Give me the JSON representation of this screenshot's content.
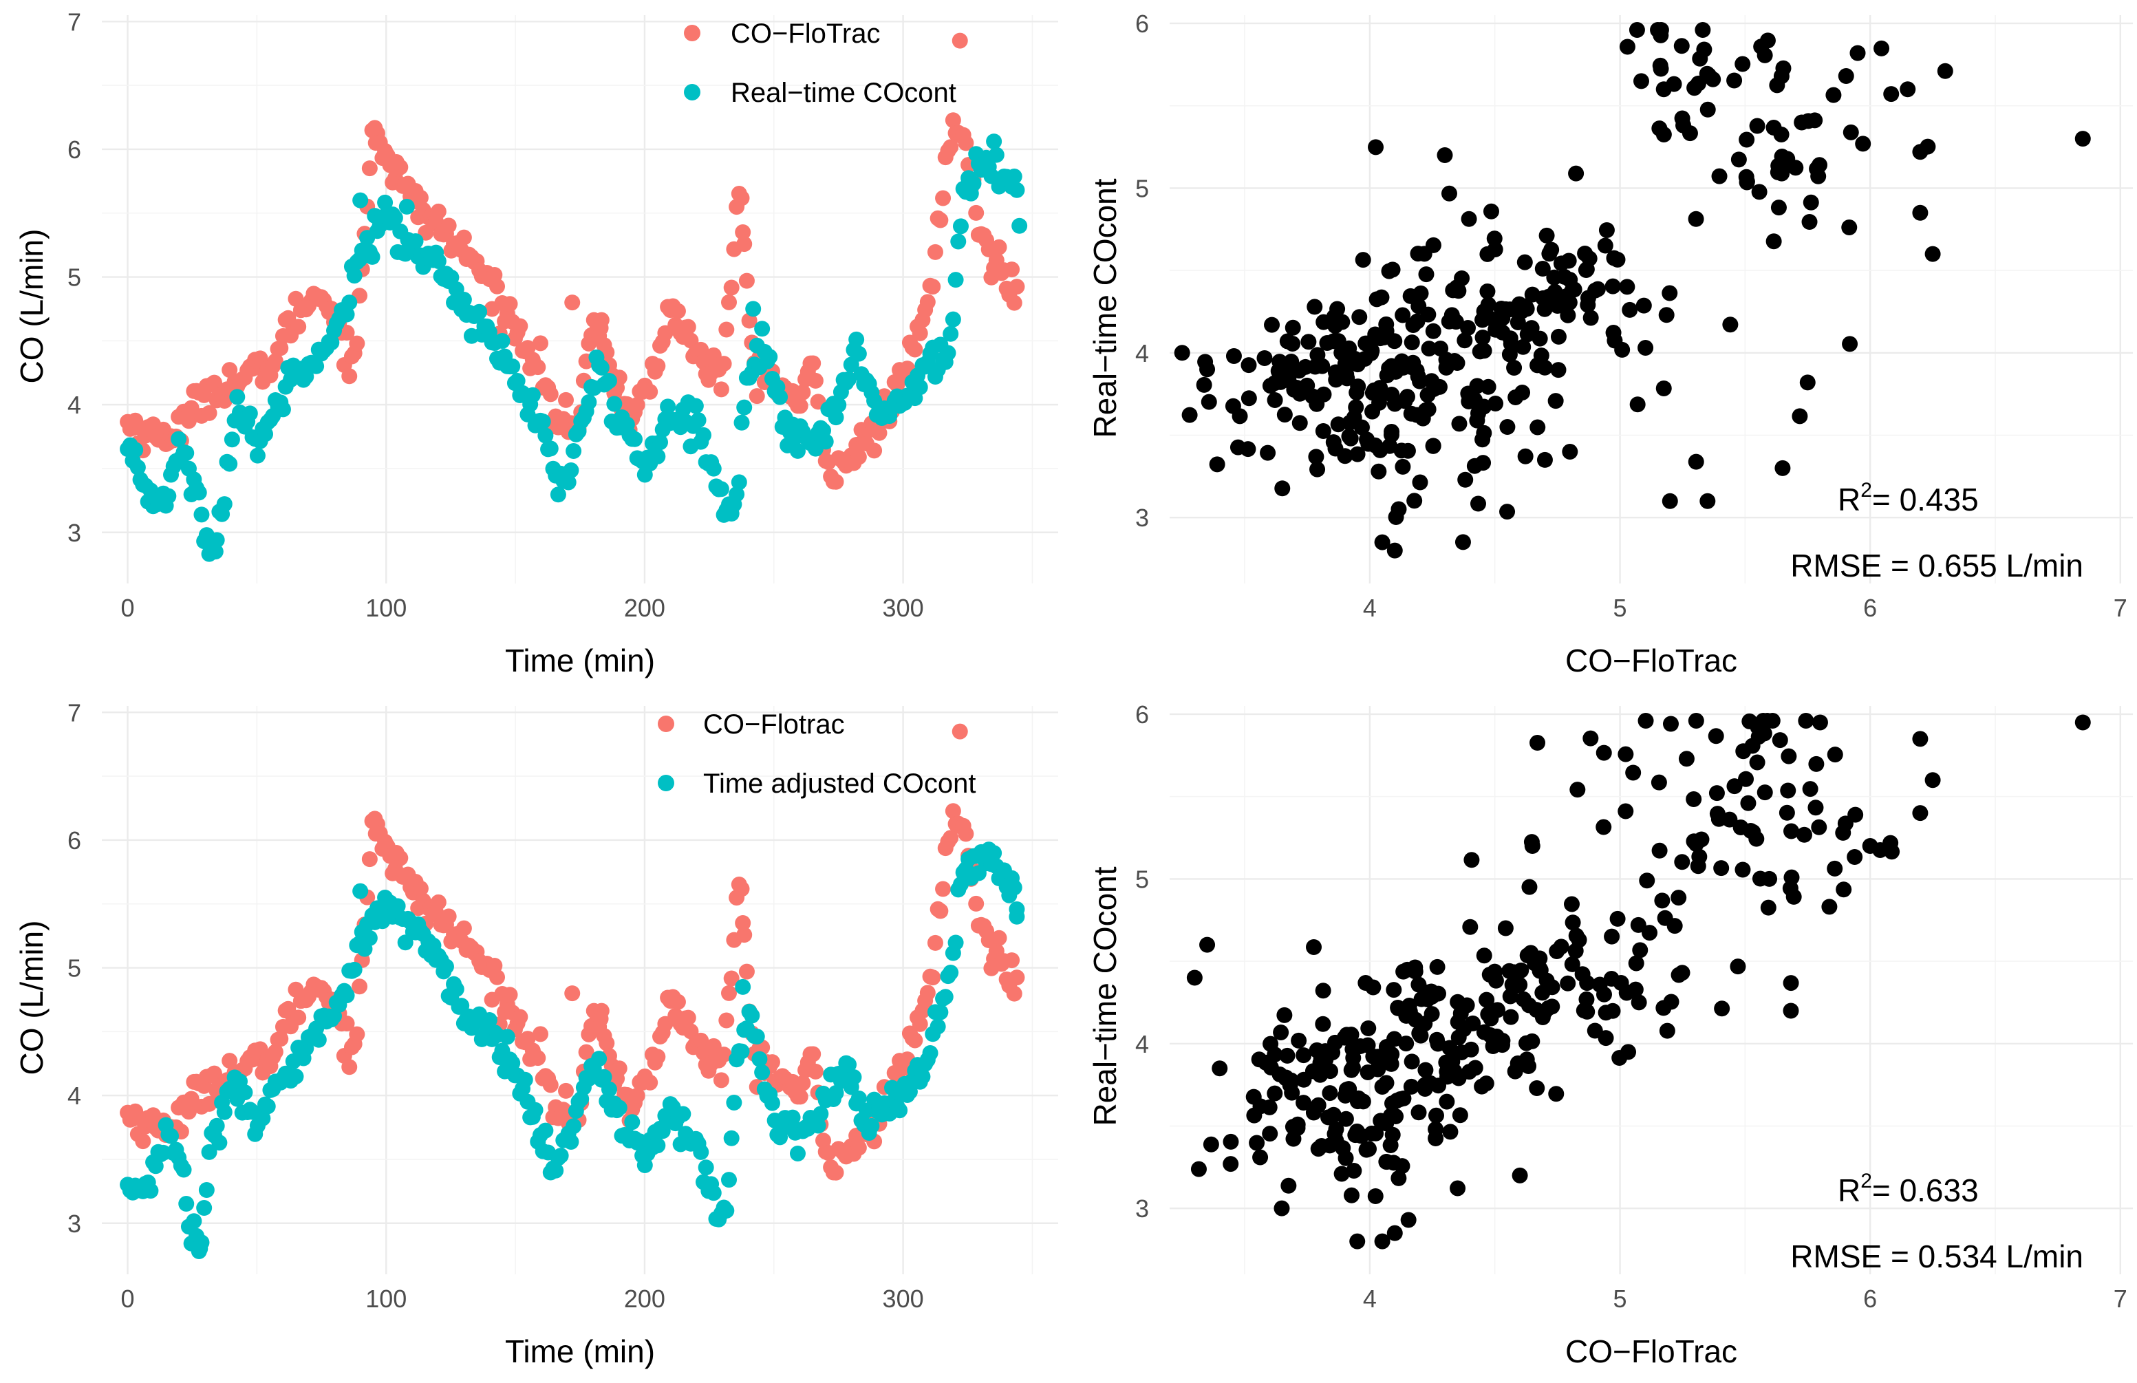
{
  "colors": {
    "flotrac": "#F8766D",
    "cocont": "#00BFC4",
    "black": "#000000"
  },
  "chart_data": [
    {
      "type": "scatter",
      "panel": "top-left",
      "title": "",
      "xlabel": "Time (min)",
      "ylabel": "CO (L/min)",
      "xlim": [
        -10,
        360
      ],
      "ylim": [
        2.6,
        7.05
      ],
      "xticks": [
        0,
        100,
        200,
        300
      ],
      "yticks": [
        3,
        4,
        5,
        6,
        7
      ],
      "legend": {
        "position": "top-right",
        "entries": [
          "CO−FloTrac",
          "Real−time COcont"
        ]
      },
      "series": [
        {
          "name": "CO−FloTrac",
          "color": "#F8766D",
          "knots": [
            [
              0,
              3.85
            ],
            [
              10,
              3.75
            ],
            [
              20,
              3.8
            ],
            [
              30,
              4.1
            ],
            [
              45,
              4.2
            ],
            [
              55,
              4.3
            ],
            [
              65,
              4.7
            ],
            [
              75,
              4.9
            ],
            [
              82,
              4.6
            ],
            [
              88,
              4.3
            ],
            [
              95,
              6.25
            ],
            [
              100,
              5.95
            ],
            [
              110,
              5.6
            ],
            [
              120,
              5.4
            ],
            [
              135,
              5.1
            ],
            [
              150,
              4.6
            ],
            [
              160,
              4.3
            ],
            [
              165,
              3.9
            ],
            [
              175,
              3.8
            ],
            [
              180,
              4.75
            ],
            [
              188,
              4.2
            ],
            [
              195,
              3.9
            ],
            [
              205,
              4.3
            ],
            [
              210,
              4.8
            ],
            [
              220,
              4.4
            ],
            [
              230,
              4.2
            ],
            [
              237,
              5.7
            ],
            [
              242,
              4.3
            ],
            [
              250,
              4.2
            ],
            [
              260,
              4.0
            ],
            [
              265,
              4.3
            ],
            [
              270,
              3.5
            ],
            [
              280,
              3.6
            ],
            [
              290,
              3.8
            ],
            [
              300,
              4.2
            ],
            [
              310,
              4.8
            ],
            [
              318,
              6.1
            ],
            [
              323,
              6.15
            ],
            [
              330,
              5.3
            ],
            [
              340,
              5.0
            ],
            [
              345,
              4.9
            ]
          ],
          "extra": [
            [
              322,
              6.85
            ],
            [
              104,
              5.9
            ],
            [
              96,
              6.05
            ],
            [
              238,
              5.35
            ],
            [
              183,
              4.6
            ],
            [
              172,
              4.8
            ],
            [
              212,
              4.6
            ]
          ],
          "n": 350
        },
        {
          "name": "Real−time COcont",
          "color": "#00BFC4",
          "knots": [
            [
              0,
              3.6
            ],
            [
              5,
              3.4
            ],
            [
              10,
              3.25
            ],
            [
              15,
              3.3
            ],
            [
              20,
              3.7
            ],
            [
              25,
              3.4
            ],
            [
              30,
              3.0
            ],
            [
              33,
              2.8
            ],
            [
              38,
              3.4
            ],
            [
              42,
              4.0
            ],
            [
              50,
              3.7
            ],
            [
              60,
              4.1
            ],
            [
              70,
              4.4
            ],
            [
              80,
              4.5
            ],
            [
              88,
              5.1
            ],
            [
              95,
              5.3
            ],
            [
              100,
              5.5
            ],
            [
              110,
              5.2
            ],
            [
              120,
              5.1
            ],
            [
              130,
              4.8
            ],
            [
              140,
              4.5
            ],
            [
              150,
              4.2
            ],
            [
              160,
              3.8
            ],
            [
              168,
              3.3
            ],
            [
              175,
              3.8
            ],
            [
              182,
              4.3
            ],
            [
              190,
              3.9
            ],
            [
              200,
              3.5
            ],
            [
              210,
              4.0
            ],
            [
              220,
              3.9
            ],
            [
              230,
              3.2
            ],
            [
              235,
              3.15
            ],
            [
              240,
              4.3
            ],
            [
              245,
              4.5
            ],
            [
              255,
              3.8
            ],
            [
              265,
              3.7
            ],
            [
              275,
              4.0
            ],
            [
              282,
              4.5
            ],
            [
              290,
              3.9
            ],
            [
              300,
              4.0
            ],
            [
              310,
              4.4
            ],
            [
              318,
              4.4
            ],
            [
              323,
              5.6
            ],
            [
              330,
              5.9
            ],
            [
              340,
              5.8
            ],
            [
              345,
              5.7
            ]
          ],
          "extra": [
            [
              242,
              4.75
            ],
            [
              90,
              5.6
            ],
            [
              108,
              5.55
            ],
            [
              34,
              2.85
            ],
            [
              345,
              5.4
            ]
          ],
          "n": 350
        }
      ]
    },
    {
      "type": "scatter",
      "panel": "top-right",
      "xlabel": "CO−FloTrac",
      "ylabel": "Real−time COcont",
      "xlim": [
        3.2,
        7.05
      ],
      "ylim": [
        2.6,
        6.05
      ],
      "xticks": [
        4,
        5,
        6,
        7
      ],
      "yticks": [
        3,
        4,
        5,
        6
      ],
      "annotations": {
        "r2_label": "R",
        "r2_sup": "2",
        "r2_value": "= 0.435",
        "rmse": "RMSE = 0.655 L/min"
      },
      "r_squared": 0.435,
      "rmse_l_per_min": 0.655,
      "clusters": [
        {
          "cx": 3.9,
          "cy": 3.8,
          "sx": 0.25,
          "sy": 0.3,
          "n": 120
        },
        {
          "cx": 4.35,
          "cy": 3.9,
          "sx": 0.25,
          "sy": 0.35,
          "n": 90
        },
        {
          "cx": 4.8,
          "cy": 4.35,
          "sx": 0.18,
          "sy": 0.18,
          "n": 50
        },
        {
          "cx": 5.35,
          "cy": 5.7,
          "sx": 0.3,
          "sy": 0.2,
          "n": 30
        },
        {
          "cx": 5.6,
          "cy": 5.25,
          "sx": 0.25,
          "sy": 0.25,
          "n": 40
        },
        {
          "cx": 4.9,
          "cy": 4.5,
          "sx": 0.5,
          "sy": 0.45,
          "n": 30
        }
      ],
      "extra": [
        [
          6.85,
          5.3
        ],
        [
          5.2,
          3.1
        ],
        [
          5.35,
          3.1
        ],
        [
          5.65,
          3.3
        ],
        [
          5.75,
          3.82
        ],
        [
          4.05,
          2.85
        ],
        [
          4.1,
          2.8
        ],
        [
          4.3,
          5.2
        ],
        [
          6.25,
          4.6
        ],
        [
          6.2,
          4.85
        ],
        [
          6.2,
          5.22
        ],
        [
          6.15,
          5.6
        ],
        [
          5.95,
          5.82
        ],
        [
          4.55,
          3.55
        ],
        [
          4.8,
          3.4
        ],
        [
          4.7,
          3.35
        ],
        [
          3.25,
          4.0
        ],
        [
          3.35,
          3.9
        ]
      ]
    },
    {
      "type": "scatter",
      "panel": "bottom-left",
      "xlabel": "Time (min)",
      "ylabel": "CO (L/min)",
      "xlim": [
        -10,
        360
      ],
      "ylim": [
        2.6,
        7.05
      ],
      "xticks": [
        0,
        100,
        200,
        300
      ],
      "yticks": [
        3,
        4,
        5,
        6,
        7
      ],
      "legend": {
        "position": "top-right",
        "entries": [
          "CO−Flotrac",
          "Time adjusted COcont"
        ]
      },
      "series": [
        {
          "name": "CO−Flotrac",
          "color": "#F8766D",
          "same_as_top": true,
          "n": 350
        },
        {
          "name": "Time adjusted COcont",
          "color": "#00BFC4",
          "knots": [
            [
              0,
              3.25
            ],
            [
              8,
              3.3
            ],
            [
              15,
              3.7
            ],
            [
              20,
              3.5
            ],
            [
              25,
              2.9
            ],
            [
              28,
              2.8
            ],
            [
              32,
              3.6
            ],
            [
              40,
              4.1
            ],
            [
              50,
              3.8
            ],
            [
              60,
              4.1
            ],
            [
              70,
              4.4
            ],
            [
              80,
              4.6
            ],
            [
              88,
              5.1
            ],
            [
              95,
              5.4
            ],
            [
              100,
              5.5
            ],
            [
              110,
              5.3
            ],
            [
              120,
              5.1
            ],
            [
              130,
              4.6
            ],
            [
              140,
              4.5
            ],
            [
              150,
              4.2
            ],
            [
              160,
              3.7
            ],
            [
              165,
              3.3
            ],
            [
              172,
              3.8
            ],
            [
              180,
              4.3
            ],
            [
              190,
              3.8
            ],
            [
              200,
              3.5
            ],
            [
              210,
              3.9
            ],
            [
              220,
              3.6
            ],
            [
              228,
              3.15
            ],
            [
              232,
              3.1
            ],
            [
              235,
              4.1
            ],
            [
              240,
              4.7
            ],
            [
              250,
              3.8
            ],
            [
              260,
              3.7
            ],
            [
              270,
              3.9
            ],
            [
              278,
              4.3
            ],
            [
              285,
              3.8
            ],
            [
              300,
              4.0
            ],
            [
              310,
              4.3
            ],
            [
              318,
              4.9
            ],
            [
              323,
              5.7
            ],
            [
              330,
              5.9
            ],
            [
              340,
              5.7
            ],
            [
              345,
              5.5
            ]
          ],
          "extra": [
            [
              238,
              4.85
            ],
            [
              90,
              5.6
            ],
            [
              28,
              2.8
            ],
            [
              344,
              5.4
            ]
          ],
          "n": 350
        }
      ]
    },
    {
      "type": "scatter",
      "panel": "bottom-right",
      "xlabel": "CO−FloTrac",
      "ylabel": "Real−time COcont",
      "xlim": [
        3.2,
        7.05
      ],
      "ylim": [
        2.6,
        6.05
      ],
      "xticks": [
        4,
        5,
        6,
        7
      ],
      "yticks": [
        3,
        4,
        5,
        6
      ],
      "annotations": {
        "r2_label": "R",
        "r2_sup": "2",
        "r2_value": "= 0.633",
        "rmse": "RMSE = 0.534 L/min"
      },
      "r_squared": 0.633,
      "rmse_l_per_min": 0.534,
      "clusters": [
        {
          "cx": 3.85,
          "cy": 3.6,
          "sx": 0.2,
          "sy": 0.3,
          "n": 110
        },
        {
          "cx": 4.3,
          "cy": 4.0,
          "sx": 0.25,
          "sy": 0.3,
          "n": 100
        },
        {
          "cx": 4.8,
          "cy": 4.4,
          "sx": 0.2,
          "sy": 0.2,
          "n": 50
        },
        {
          "cx": 5.35,
          "cy": 5.75,
          "sx": 0.3,
          "sy": 0.2,
          "n": 30
        },
        {
          "cx": 5.7,
          "cy": 5.3,
          "sx": 0.25,
          "sy": 0.25,
          "n": 40
        },
        {
          "cx": 5.0,
          "cy": 4.6,
          "sx": 0.35,
          "sy": 0.35,
          "n": 30
        }
      ],
      "extra": [
        [
          6.85,
          5.95
        ],
        [
          3.3,
          4.4
        ],
        [
          3.35,
          4.6
        ],
        [
          3.4,
          3.85
        ],
        [
          4.05,
          2.8
        ],
        [
          4.1,
          2.85
        ],
        [
          3.95,
          2.8
        ],
        [
          4.6,
          3.2
        ],
        [
          6.25,
          5.6
        ],
        [
          6.2,
          5.4
        ],
        [
          6.2,
          5.85
        ],
        [
          6.0,
          5.2
        ],
        [
          5.8,
          5.95
        ],
        [
          4.65,
          5.2
        ]
      ]
    }
  ]
}
